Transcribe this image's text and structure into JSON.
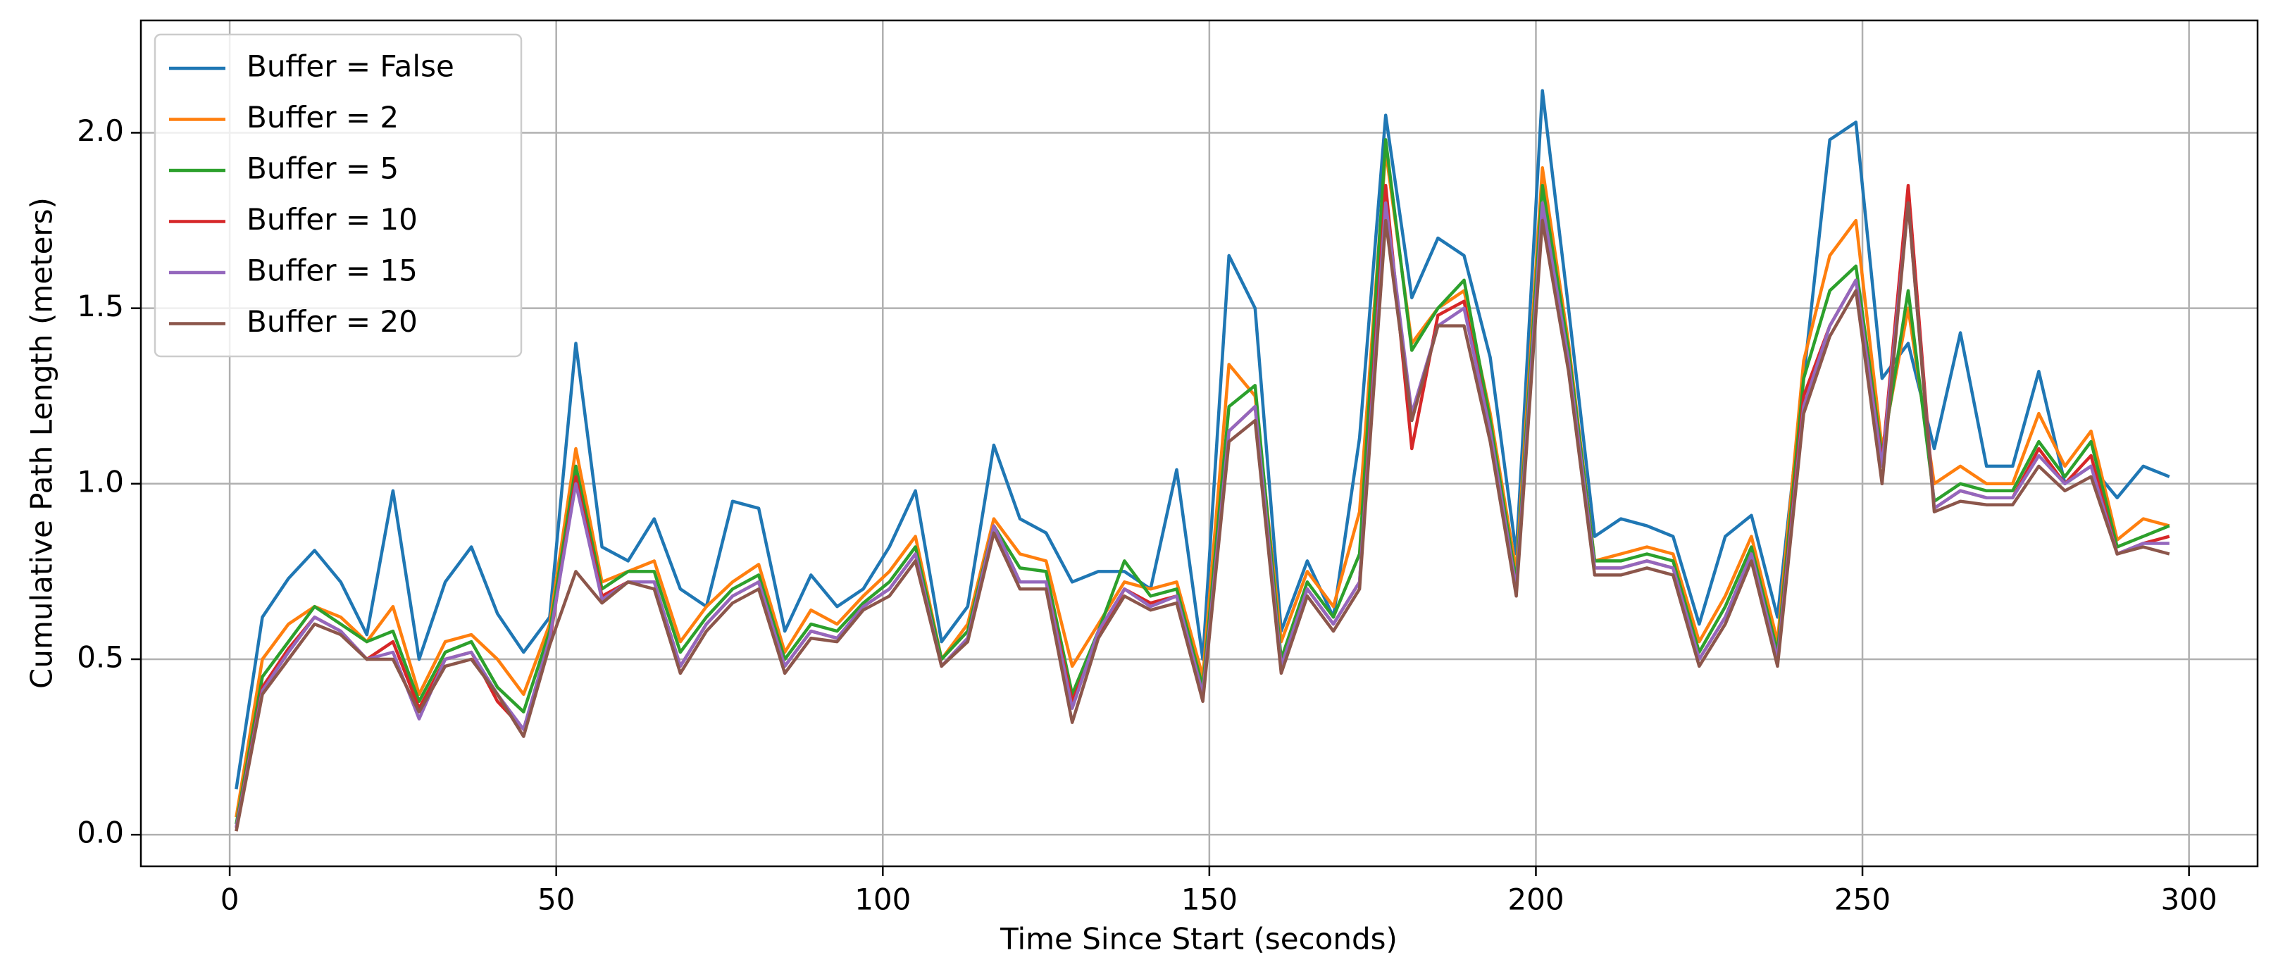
{
  "chart_data": {
    "type": "line",
    "x_label": "Time Since Start (seconds)",
    "y_label": "Cumulative Path Length (meters)",
    "x": [
      1,
      5,
      9,
      13,
      17,
      21,
      25,
      29,
      33,
      37,
      41,
      45,
      49,
      53,
      57,
      61,
      65,
      69,
      73,
      77,
      81,
      85,
      89,
      93,
      97,
      101,
      105,
      109,
      113,
      117,
      121,
      125,
      129,
      133,
      137,
      141,
      145,
      149,
      153,
      157,
      161,
      165,
      169,
      173,
      177,
      181,
      185,
      189,
      193,
      197,
      201,
      205,
      209,
      213,
      217,
      221,
      225,
      229,
      233,
      237,
      241,
      245,
      249,
      253,
      257,
      261,
      265,
      269,
      273,
      277,
      281,
      285,
      289,
      293,
      297
    ],
    "series": [
      {
        "name": "Buffer = False",
        "color": "#1f77b4",
        "values": [
          0.13,
          0.62,
          0.73,
          0.81,
          0.72,
          0.57,
          0.98,
          0.5,
          0.72,
          0.82,
          0.63,
          0.52,
          0.62,
          1.4,
          0.82,
          0.78,
          0.9,
          0.7,
          0.65,
          0.95,
          0.93,
          0.58,
          0.74,
          0.65,
          0.7,
          0.82,
          0.98,
          0.55,
          0.65,
          1.11,
          0.9,
          0.86,
          0.72,
          0.75,
          0.75,
          0.7,
          1.04,
          0.5,
          1.65,
          1.5,
          0.58,
          0.78,
          0.62,
          1.13,
          2.05,
          1.53,
          1.7,
          1.65,
          1.36,
          0.8,
          2.12,
          1.5,
          0.85,
          0.9,
          0.88,
          0.85,
          0.6,
          0.85,
          0.91,
          0.62,
          1.3,
          1.98,
          2.03,
          1.3,
          1.4,
          1.1,
          1.43,
          1.05,
          1.05,
          1.32,
          1.0,
          1.05,
          0.96,
          1.05,
          1.02
        ]
      },
      {
        "name": "Buffer = 2",
        "color": "#ff7f0e",
        "values": [
          0.05,
          0.5,
          0.6,
          0.65,
          0.62,
          0.55,
          0.65,
          0.4,
          0.55,
          0.57,
          0.5,
          0.4,
          0.6,
          1.1,
          0.72,
          0.75,
          0.78,
          0.55,
          0.65,
          0.72,
          0.77,
          0.52,
          0.64,
          0.6,
          0.68,
          0.75,
          0.85,
          0.5,
          0.6,
          0.9,
          0.8,
          0.78,
          0.48,
          0.6,
          0.72,
          0.7,
          0.72,
          0.45,
          1.34,
          1.25,
          0.55,
          0.75,
          0.65,
          0.92,
          1.95,
          1.4,
          1.5,
          1.55,
          1.2,
          0.75,
          1.9,
          1.4,
          0.78,
          0.8,
          0.82,
          0.8,
          0.55,
          0.68,
          0.85,
          0.55,
          1.35,
          1.65,
          1.75,
          1.1,
          1.5,
          1.0,
          1.05,
          1.0,
          1.0,
          1.2,
          1.05,
          1.15,
          0.84,
          0.9,
          0.88
        ]
      },
      {
        "name": "Buffer = 5",
        "color": "#2ca02c",
        "values": [
          0.03,
          0.45,
          0.55,
          0.65,
          0.6,
          0.55,
          0.58,
          0.38,
          0.52,
          0.55,
          0.42,
          0.35,
          0.58,
          1.05,
          0.7,
          0.75,
          0.75,
          0.52,
          0.62,
          0.7,
          0.74,
          0.5,
          0.6,
          0.58,
          0.66,
          0.72,
          0.82,
          0.5,
          0.58,
          0.88,
          0.76,
          0.75,
          0.4,
          0.58,
          0.78,
          0.68,
          0.7,
          0.42,
          1.22,
          1.28,
          0.5,
          0.72,
          0.62,
          0.8,
          1.98,
          1.38,
          1.5,
          1.58,
          1.18,
          0.72,
          1.85,
          1.38,
          0.78,
          0.78,
          0.8,
          0.78,
          0.52,
          0.65,
          0.82,
          0.52,
          1.3,
          1.55,
          1.62,
          1.08,
          1.55,
          0.95,
          1.0,
          0.98,
          0.98,
          1.12,
          1.02,
          1.12,
          0.82,
          0.85,
          0.88
        ]
      },
      {
        "name": "Buffer = 10",
        "color": "#d62728",
        "values": [
          0.02,
          0.42,
          0.53,
          0.62,
          0.58,
          0.5,
          0.55,
          0.36,
          0.5,
          0.52,
          0.38,
          0.3,
          0.55,
          1.02,
          0.68,
          0.72,
          0.72,
          0.48,
          0.6,
          0.68,
          0.72,
          0.48,
          0.58,
          0.56,
          0.65,
          0.7,
          0.8,
          0.48,
          0.56,
          0.88,
          0.72,
          0.72,
          0.38,
          0.56,
          0.7,
          0.66,
          0.68,
          0.4,
          1.15,
          1.22,
          0.48,
          0.7,
          0.6,
          0.72,
          1.85,
          1.1,
          1.48,
          1.52,
          1.15,
          0.7,
          1.78,
          1.35,
          0.76,
          0.76,
          0.78,
          0.76,
          0.5,
          0.62,
          0.8,
          0.5,
          1.25,
          1.45,
          1.58,
          1.06,
          1.85,
          0.93,
          0.98,
          0.96,
          0.96,
          1.1,
          1.0,
          1.08,
          0.8,
          0.83,
          0.85
        ]
      },
      {
        "name": "Buffer = 15",
        "color": "#9467bd",
        "values": [
          0.02,
          0.41,
          0.52,
          0.62,
          0.58,
          0.5,
          0.52,
          0.33,
          0.5,
          0.52,
          0.4,
          0.3,
          0.56,
          1.0,
          0.67,
          0.72,
          0.72,
          0.48,
          0.6,
          0.68,
          0.72,
          0.48,
          0.58,
          0.56,
          0.65,
          0.7,
          0.8,
          0.48,
          0.56,
          0.88,
          0.72,
          0.72,
          0.36,
          0.58,
          0.7,
          0.65,
          0.68,
          0.4,
          1.15,
          1.22,
          0.48,
          0.7,
          0.6,
          0.72,
          1.8,
          1.2,
          1.45,
          1.5,
          1.15,
          0.7,
          1.8,
          1.35,
          0.76,
          0.76,
          0.78,
          0.76,
          0.5,
          0.62,
          0.8,
          0.5,
          1.22,
          1.45,
          1.58,
          1.05,
          1.8,
          0.93,
          0.98,
          0.96,
          0.96,
          1.08,
          1.0,
          1.05,
          0.8,
          0.83,
          0.83
        ]
      },
      {
        "name": "Buffer = 20",
        "color": "#8c564b",
        "values": [
          0.01,
          0.4,
          0.5,
          0.6,
          0.57,
          0.5,
          0.5,
          0.35,
          0.48,
          0.5,
          0.4,
          0.28,
          0.54,
          0.75,
          0.66,
          0.72,
          0.7,
          0.46,
          0.58,
          0.66,
          0.7,
          0.46,
          0.56,
          0.55,
          0.64,
          0.68,
          0.78,
          0.48,
          0.55,
          0.86,
          0.7,
          0.7,
          0.32,
          0.56,
          0.68,
          0.64,
          0.66,
          0.38,
          1.12,
          1.18,
          0.46,
          0.68,
          0.58,
          0.7,
          1.75,
          1.18,
          1.45,
          1.45,
          1.12,
          0.68,
          1.75,
          1.32,
          0.74,
          0.74,
          0.76,
          0.74,
          0.48,
          0.6,
          0.78,
          0.48,
          1.2,
          1.42,
          1.55,
          1.0,
          1.8,
          0.92,
          0.95,
          0.94,
          0.94,
          1.05,
          0.98,
          1.02,
          0.8,
          0.82,
          0.8
        ]
      }
    ],
    "xlim": [
      -13.6,
      310.5
    ],
    "ylim": [
      -0.09,
      2.32
    ],
    "xticks": [
      0,
      50,
      100,
      150,
      200,
      250,
      300
    ],
    "yticks": [
      {
        "value": 0,
        "label": "0.0"
      },
      0.5,
      {
        "value": 1,
        "label": "1.0"
      },
      1.5,
      {
        "value": 2,
        "label": "2.0"
      }
    ],
    "grid": true,
    "legend": "upper left"
  }
}
